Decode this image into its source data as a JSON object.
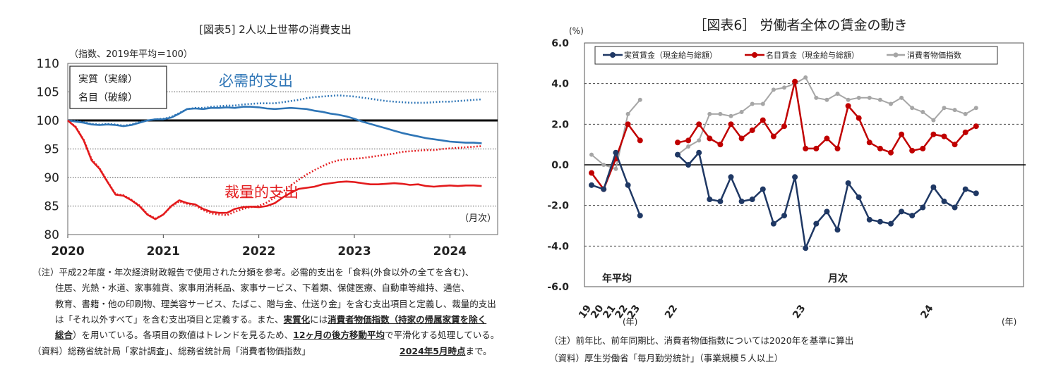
{
  "chart_data": [
    {
      "type": "line",
      "title": "[図表5] 2人以上世帯の消費支出",
      "unit_label": "（指数、2019年平均＝100）",
      "x_unit": "（月次）",
      "ylim": [
        80,
        110
      ],
      "y_ticks": [
        "80",
        "85",
        "90",
        "95",
        "100",
        "105",
        "110"
      ],
      "x_ticks": [
        "2020",
        "2021",
        "2022",
        "2023",
        "2024"
      ],
      "reference_line": 100,
      "legend": [
        "実質（実線）",
        "名目（破線）"
      ],
      "annotations": [
        "必需的支出",
        "裁量的支出"
      ],
      "x": [
        2020.0,
        2020.083,
        2020.167,
        2020.25,
        2020.333,
        2020.417,
        2020.5,
        2020.583,
        2020.667,
        2020.75,
        2020.833,
        2020.917,
        2021.0,
        2021.083,
        2021.167,
        2021.25,
        2021.333,
        2021.417,
        2021.5,
        2021.583,
        2021.667,
        2021.75,
        2021.833,
        2021.917,
        2022.0,
        2022.083,
        2022.167,
        2022.25,
        2022.333,
        2022.417,
        2022.5,
        2022.583,
        2022.667,
        2022.75,
        2022.833,
        2022.917,
        2023.0,
        2023.083,
        2023.167,
        2023.25,
        2023.333,
        2023.417,
        2023.5,
        2023.583,
        2023.667,
        2023.75,
        2023.833,
        2023.917,
        2024.0,
        2024.083,
        2024.167,
        2024.25,
        2024.333
      ],
      "series": [
        {
          "name": "必需的支出（実質）",
          "color": "#2e75b6",
          "dash": false,
          "values": [
            100.0,
            99.8,
            99.6,
            99.3,
            99.2,
            99.3,
            99.2,
            99.0,
            99.2,
            99.6,
            100.0,
            100.2,
            100.2,
            100.5,
            101.2,
            102.0,
            102.1,
            102.0,
            102.2,
            102.2,
            102.3,
            102.2,
            102.4,
            102.4,
            102.3,
            102.1,
            102.0,
            102.1,
            102.2,
            102.1,
            102.0,
            101.7,
            101.5,
            101.2,
            101.0,
            100.7,
            100.3,
            99.8,
            99.4,
            99.0,
            98.6,
            98.2,
            97.8,
            97.5,
            97.2,
            96.9,
            96.7,
            96.5,
            96.3,
            96.2,
            96.1,
            96.1,
            96.0
          ]
        },
        {
          "name": "必需的支出（名目）",
          "color": "#2e75b6",
          "dash": true,
          "values": [
            100.0,
            99.9,
            99.7,
            99.4,
            99.3,
            99.4,
            99.3,
            99.1,
            99.3,
            99.7,
            100.0,
            100.2,
            100.3,
            100.6,
            101.3,
            102.0,
            102.2,
            102.2,
            102.4,
            102.5,
            102.6,
            102.6,
            102.8,
            102.9,
            103.0,
            103.0,
            103.0,
            103.2,
            103.4,
            103.6,
            103.9,
            104.1,
            104.2,
            104.3,
            104.4,
            104.3,
            104.2,
            104.0,
            103.8,
            103.6,
            103.4,
            103.3,
            103.2,
            103.1,
            103.1,
            103.1,
            103.2,
            103.3,
            103.3,
            103.4,
            103.5,
            103.6,
            103.7
          ]
        },
        {
          "name": "裁量的支出（実質）",
          "color": "#e31a1c",
          "dash": false,
          "values": [
            100.0,
            98.8,
            96.5,
            93.0,
            91.5,
            89.2,
            87.0,
            86.8,
            86.0,
            85.0,
            83.5,
            82.7,
            83.5,
            85.0,
            86.0,
            85.5,
            85.3,
            84.5,
            84.0,
            83.8,
            83.8,
            84.5,
            84.8,
            84.9,
            84.8,
            85.0,
            85.5,
            86.5,
            87.3,
            88.0,
            88.2,
            88.4,
            88.8,
            89.0,
            89.2,
            89.3,
            89.2,
            89.0,
            88.8,
            88.8,
            88.9,
            89.0,
            88.9,
            88.7,
            88.8,
            88.5,
            88.4,
            88.5,
            88.6,
            88.5,
            88.6,
            88.6,
            88.5
          ]
        },
        {
          "name": "裁量的支出（名目）",
          "color": "#e31a1c",
          "dash": true,
          "values": [
            100.0,
            98.9,
            96.6,
            93.2,
            91.6,
            89.3,
            87.1,
            86.9,
            86.1,
            85.1,
            83.6,
            82.8,
            83.5,
            84.9,
            85.8,
            85.4,
            85.1,
            84.3,
            83.7,
            83.5,
            83.4,
            84.0,
            84.5,
            84.8,
            85.0,
            85.6,
            86.5,
            87.5,
            88.6,
            89.6,
            90.5,
            91.3,
            92.0,
            92.6,
            93.0,
            93.2,
            93.3,
            93.4,
            93.6,
            93.8,
            94.0,
            94.2,
            94.5,
            94.6,
            94.7,
            94.8,
            94.8,
            95.0,
            95.1,
            95.2,
            95.3,
            95.4,
            95.5
          ]
        }
      ],
      "notes": [
        {
          "segments": [
            {
              "t": "（注）平成22年度・年次経済財政報告で使用された分類を参考。必需的支出を「食料(外食以外の全てを含む)、",
              "b": false
            }
          ]
        },
        {
          "segments": [
            {
              "t": "住居、光熱・水道、家事雑貨、家事用消耗品、家事サービス、下着類、保健医療、自動車等維持、通信、",
              "b": false
            }
          ]
        },
        {
          "segments": [
            {
              "t": "教育、書籍・他の印刷物、理美容サービス、たばこ、贈与金、仕送り金」を含む支出項目と定義し、裁量的支出",
              "b": false
            }
          ]
        },
        {
          "segments": [
            {
              "t": "は「それ以外すべて」を含む支出項目と定義する。また、",
              "b": false
            },
            {
              "t": "実質化",
              "b": true
            },
            {
              "t": "には",
              "b": false
            },
            {
              "t": "消費者物価指数（持家の帰属家賃を除く",
              "b": true
            }
          ]
        },
        {
          "segments": [
            {
              "t": "総合",
              "b": true
            },
            {
              "t": "）を用いている。各項目の数値はトレンドを見るため、",
              "b": false
            },
            {
              "t": "12ヶ月の後方移動平均",
              "b": true
            },
            {
              "t": "で平滑化する処理している。",
              "b": false
            }
          ]
        }
      ],
      "source": "（資料）総務省統計局「家計調査」、総務省統計局「消費者物価指数」",
      "as_of": "2024年5月時点",
      "as_of_suffix": "まで。"
    },
    {
      "type": "line",
      "title": "［図表6］ 労働者全体の賃金の動き",
      "y_unit": "(%)",
      "ylim": [
        -6,
        6
      ],
      "y_ticks": [
        "6.0",
        "4.0",
        "2.0",
        "0.0",
        "-2.0",
        "-4.0",
        "-6.0"
      ],
      "section_labels": [
        "年平均",
        "月次"
      ],
      "annual_categories": [
        "19",
        "20",
        "21",
        "22",
        "23"
      ],
      "annual_unit": "(年)",
      "monthly_year_labels": [
        {
          "label": "22",
          "index": 0
        },
        {
          "label": "23",
          "index": 12
        },
        {
          "label": "24",
          "index": 24
        }
      ],
      "monthly_unit": "(年)",
      "legend": [
        "実質賃金（現金給与総額）",
        "名目賃金（現金給与総額）",
        "消費者物価指数"
      ],
      "annual_series": [
        {
          "name": "実質賃金（現金給与総額）",
          "color": "#1f3864",
          "values": [
            -1.0,
            -1.2,
            0.6,
            -1.0,
            -2.5
          ]
        },
        {
          "name": "名目賃金（現金給与総額）",
          "color": "#c00000",
          "values": [
            -0.4,
            -1.2,
            0.3,
            2.0,
            1.2
          ]
        },
        {
          "name": "消費者物価指数",
          "color": "#a6a6a6",
          "values": [
            0.5,
            0.0,
            -0.2,
            2.5,
            3.2
          ]
        }
      ],
      "monthly_series": [
        {
          "name": "実質賃金（現金給与総額）",
          "color": "#1f3864",
          "values": [
            0.5,
            0.0,
            0.6,
            -1.7,
            -1.8,
            -0.6,
            -1.8,
            -1.7,
            -1.2,
            -2.9,
            -2.5,
            -0.6,
            -4.1,
            -2.9,
            -2.3,
            -3.2,
            -0.9,
            -1.6,
            -2.7,
            -2.8,
            -2.9,
            -2.3,
            -2.5,
            -2.1,
            -1.1,
            -1.8,
            -2.1,
            -1.2,
            -1.4
          ]
        },
        {
          "name": "名目賃金（現金給与総額）",
          "color": "#c00000",
          "values": [
            1.1,
            1.2,
            2.0,
            1.3,
            1.0,
            2.0,
            1.3,
            1.7,
            2.2,
            1.4,
            1.9,
            4.1,
            0.8,
            0.8,
            1.3,
            0.8,
            2.9,
            2.3,
            1.1,
            0.8,
            0.6,
            1.5,
            0.7,
            0.8,
            1.5,
            1.4,
            1.0,
            1.6,
            1.9
          ]
        },
        {
          "name": "消費者物価指数",
          "color": "#a6a6a6",
          "values": [
            0.5,
            0.9,
            1.2,
            2.5,
            2.5,
            2.4,
            2.6,
            3.0,
            3.0,
            3.7,
            3.8,
            4.0,
            4.3,
            3.3,
            3.2,
            3.5,
            3.2,
            3.3,
            3.3,
            3.2,
            3.0,
            3.3,
            2.8,
            2.6,
            2.2,
            2.8,
            2.7,
            2.5,
            2.8
          ]
        }
      ],
      "notes": [
        "（注）前年比、前年同期比、消費者物価指数については2020年を基準に算出",
        "（資料）厚生労働省「毎月勤労統計」（事業規模５人以上）"
      ]
    }
  ]
}
